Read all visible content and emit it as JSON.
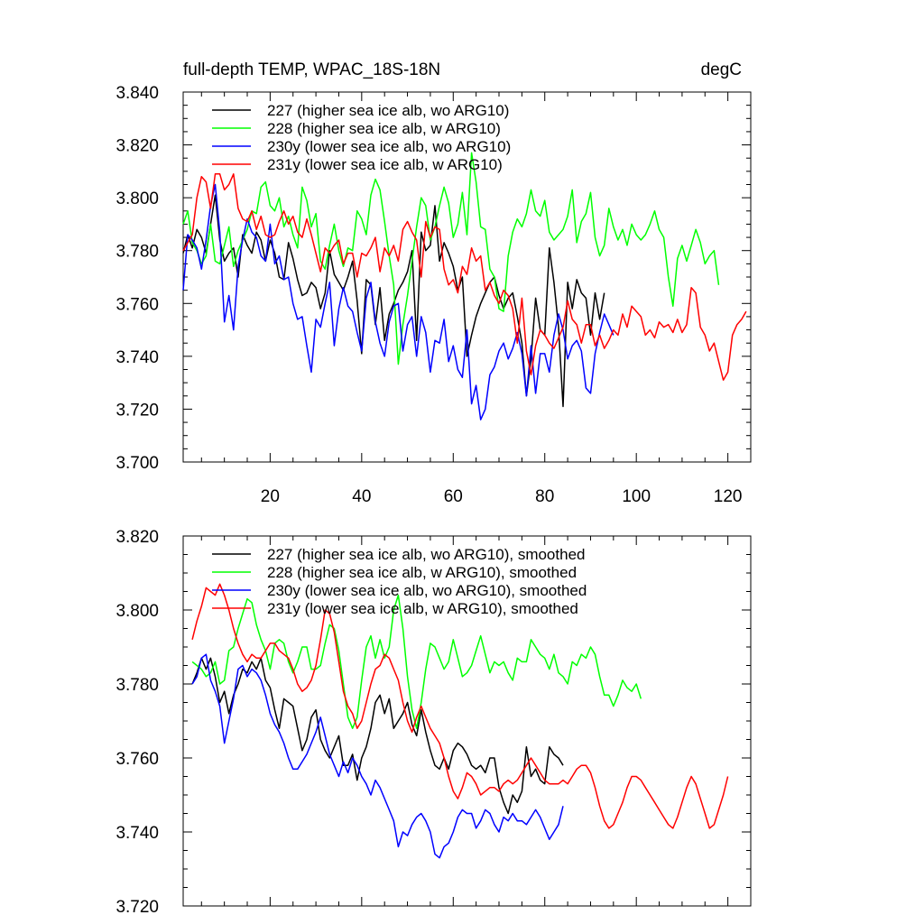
{
  "chart_data": [
    {
      "type": "line",
      "title": "full-depth TEMP, WPAC_18S-18N",
      "units": "degC",
      "xlim": [
        1,
        125
      ],
      "ylim": [
        3.7,
        3.84
      ],
      "x_ticks": [
        20,
        40,
        60,
        80,
        100,
        120
      ],
      "y_ticks": [
        3.7,
        3.72,
        3.74,
        3.76,
        3.78,
        3.8,
        3.82,
        3.84
      ],
      "x_tick_labels": [
        "20",
        "40",
        "60",
        "80",
        "100",
        "120"
      ],
      "y_tick_labels": [
        "3.700",
        "3.720",
        "3.740",
        "3.760",
        "3.780",
        "3.800",
        "3.820",
        "3.840"
      ],
      "legend_position": "top-left",
      "series": [
        {
          "name": "227 (higher sea ice alb, wo ARG10)",
          "color": "#000000",
          "x_start": 1,
          "values": [
            3.779,
            3.786,
            3.781,
            3.788,
            3.785,
            3.779,
            3.79,
            3.801,
            3.784,
            3.776,
            3.779,
            3.781,
            3.77,
            3.786,
            3.782,
            3.779,
            3.787,
            3.784,
            3.776,
            3.784,
            3.779,
            3.77,
            3.769,
            3.783,
            3.777,
            3.769,
            3.763,
            3.764,
            3.768,
            3.766,
            3.758,
            3.764,
            3.78,
            3.771,
            3.768,
            3.765,
            3.77,
            3.776,
            3.761,
            3.741,
            3.769,
            3.767,
            3.752,
            3.766,
            3.746,
            3.756,
            3.76,
            3.765,
            3.768,
            3.772,
            3.78,
            3.746,
            3.787,
            3.78,
            3.782,
            3.797,
            3.776,
            3.783,
            3.779,
            3.774,
            3.765,
            3.77,
            3.74,
            3.748,
            3.755,
            3.76,
            3.764,
            3.768,
            3.77,
            3.763,
            3.758,
            3.762,
            3.764,
            3.755,
            3.745,
            3.725,
            3.739,
            3.762,
            3.75,
            3.748,
            3.781,
            3.768,
            3.751,
            3.721,
            3.768,
            3.758,
            3.769,
            3.764,
            3.762,
            3.748,
            3.764,
            3.754,
            3.764
          ]
        },
        {
          "name": "228 (higher sea ice alb, w ARG10)",
          "color": "#00ff00",
          "x_start": 1,
          "values": [
            3.79,
            3.795,
            3.783,
            3.78,
            3.775,
            3.778,
            3.79,
            3.776,
            3.775,
            3.782,
            3.789,
            3.774,
            3.78,
            3.784,
            3.788,
            3.795,
            3.794,
            3.804,
            3.806,
            3.797,
            3.795,
            3.8,
            3.789,
            3.793,
            3.786,
            3.781,
            3.804,
            3.799,
            3.789,
            3.794,
            3.776,
            3.773,
            3.782,
            3.79,
            3.78,
            3.774,
            3.781,
            3.78,
            3.795,
            3.792,
            3.786,
            3.801,
            3.807,
            3.803,
            3.791,
            3.778,
            3.767,
            3.737,
            3.752,
            3.763,
            3.776,
            3.789,
            3.8,
            3.797,
            3.784,
            3.789,
            3.797,
            3.804,
            3.798,
            3.785,
            3.79,
            3.802,
            3.786,
            3.817,
            3.806,
            3.789,
            3.788,
            3.773,
            3.77,
            3.758,
            3.757,
            3.778,
            3.787,
            3.792,
            3.789,
            3.794,
            3.803,
            3.795,
            3.793,
            3.799,
            3.787,
            3.784,
            3.786,
            3.788,
            3.793,
            3.803,
            3.783,
            3.791,
            3.794,
            3.802,
            3.785,
            3.778,
            3.782,
            3.796,
            3.789,
            3.784,
            3.788,
            3.782,
            3.79,
            3.786,
            3.784,
            3.786,
            3.79,
            3.795,
            3.788,
            3.785,
            3.77,
            3.759,
            3.777,
            3.782,
            3.776,
            3.782,
            3.788,
            3.783,
            3.775,
            3.778,
            3.78,
            3.767
          ]
        },
        {
          "name": "230y (lower sea ice alb, wo ARG10)",
          "color": "#0000ff",
          "x_start": 1,
          "values": [
            3.765,
            3.786,
            3.784,
            3.781,
            3.773,
            3.784,
            3.797,
            3.805,
            3.787,
            3.753,
            3.763,
            3.75,
            3.774,
            3.784,
            3.792,
            3.787,
            3.785,
            3.778,
            3.776,
            3.79,
            3.775,
            3.778,
            3.769,
            3.77,
            3.76,
            3.754,
            3.755,
            3.744,
            3.734,
            3.754,
            3.751,
            3.76,
            3.768,
            3.744,
            3.758,
            3.766,
            3.759,
            3.757,
            3.749,
            3.742,
            3.762,
            3.768,
            3.753,
            3.745,
            3.74,
            3.753,
            3.759,
            3.76,
            3.742,
            3.752,
            3.755,
            3.74,
            3.755,
            3.749,
            3.734,
            3.746,
            3.745,
            3.754,
            3.738,
            3.744,
            3.735,
            3.732,
            3.75,
            3.722,
            3.729,
            3.716,
            3.72,
            3.733,
            3.736,
            3.742,
            3.745,
            3.739,
            3.743,
            3.749,
            3.741,
            3.725,
            3.744,
            3.726,
            3.741,
            3.741,
            3.734,
            3.748,
            3.756,
            3.75,
            3.739,
            3.744,
            3.746,
            3.742,
            3.728,
            3.726,
            3.741,
            3.749,
            3.756,
            3.752,
            3.748
          ]
        },
        {
          "name": "231y (lower sea ice alb, w ARG10)",
          "color": "#ff0000",
          "x_start": 1,
          "values": [
            3.78,
            3.783,
            3.786,
            3.8,
            3.808,
            3.806,
            3.796,
            3.809,
            3.809,
            3.803,
            3.805,
            3.809,
            3.796,
            3.792,
            3.791,
            3.795,
            3.788,
            3.793,
            3.786,
            3.785,
            3.786,
            3.791,
            3.795,
            3.79,
            3.793,
            3.787,
            3.785,
            3.792,
            3.786,
            3.779,
            3.772,
            3.781,
            3.779,
            3.782,
            3.784,
            3.775,
            3.779,
            3.779,
            3.77,
            3.779,
            3.778,
            3.781,
            3.785,
            3.772,
            3.781,
            3.778,
            3.782,
            3.776,
            3.788,
            3.791,
            3.787,
            3.784,
            3.77,
            3.791,
            3.785,
            3.789,
            3.788,
            3.773,
            3.767,
            3.769,
            3.764,
            3.774,
            3.771,
            3.781,
            3.776,
            3.778,
            3.765,
            3.768,
            3.763,
            3.76,
            3.765,
            3.763,
            3.758,
            3.745,
            3.762,
            3.742,
            3.733,
            3.744,
            3.75,
            3.748,
            3.745,
            3.743,
            3.747,
            3.751,
            3.761,
            3.754,
            3.752,
            3.745,
            3.752,
            3.752,
            3.744,
            3.748,
            3.743,
            3.746,
            3.75,
            3.748,
            3.756,
            3.751,
            3.759,
            3.757,
            3.755,
            3.748,
            3.75,
            3.747,
            3.753,
            3.751,
            3.752,
            3.749,
            3.754,
            3.749,
            3.752,
            3.766,
            3.764,
            3.751,
            3.748,
            3.742,
            3.745,
            3.738,
            3.731,
            3.734,
            3.748,
            3.752,
            3.754,
            3.757
          ]
        }
      ]
    },
    {
      "type": "line",
      "title": "",
      "xlim": [
        1,
        125
      ],
      "ylim": [
        3.72,
        3.82
      ],
      "x_ticks": [
        20,
        40,
        60,
        80,
        100,
        120
      ],
      "y_ticks": [
        3.72,
        3.74,
        3.76,
        3.78,
        3.8,
        3.82
      ],
      "y_tick_labels": [
        "3.720",
        "3.740",
        "3.760",
        "3.780",
        "3.800",
        "3.820"
      ],
      "legend_position": "top-left",
      "series": [
        {
          "name": "227 (higher sea ice alb, wo ARG10), smoothed",
          "color": "#000000",
          "x_start": 3,
          "values": [
            3.78,
            3.783,
            3.787,
            3.784,
            3.787,
            3.782,
            3.775,
            3.778,
            3.772,
            3.777,
            3.78,
            3.784,
            3.783,
            3.786,
            3.784,
            3.787,
            3.781,
            3.779,
            3.773,
            3.768,
            3.776,
            3.775,
            3.774,
            3.768,
            3.762,
            3.765,
            3.771,
            3.773,
            3.765,
            3.762,
            3.76,
            3.763,
            3.766,
            3.758,
            3.758,
            3.761,
            3.754,
            3.76,
            3.763,
            3.768,
            3.775,
            3.777,
            3.772,
            3.776,
            3.768,
            3.77,
            3.772,
            3.775,
            3.769,
            3.766,
            3.773,
            3.767,
            3.762,
            3.758,
            3.757,
            3.76,
            3.757,
            3.762,
            3.764,
            3.763,
            3.761,
            3.758,
            3.757,
            3.758,
            3.756,
            3.76,
            3.76,
            3.752,
            3.748,
            3.745,
            3.75,
            3.748,
            3.751,
            3.763,
            3.755,
            3.757,
            3.754,
            3.753,
            3.763,
            3.761,
            3.76,
            3.758
          ]
        },
        {
          "name": "228 (higher sea ice alb, w ARG10), smoothed",
          "color": "#00ff00",
          "x_start": 3,
          "values": [
            3.786,
            3.785,
            3.784,
            3.782,
            3.783,
            3.786,
            3.78,
            3.781,
            3.789,
            3.79,
            3.795,
            3.799,
            3.803,
            3.802,
            3.796,
            3.792,
            3.789,
            3.784,
            3.791,
            3.792,
            3.791,
            3.786,
            3.783,
            3.786,
            3.79,
            3.79,
            3.784,
            3.784,
            3.785,
            3.791,
            3.796,
            3.795,
            3.789,
            3.78,
            3.771,
            3.768,
            3.771,
            3.781,
            3.79,
            3.793,
            3.787,
            3.792,
            3.787,
            3.79,
            3.8,
            3.804,
            3.795,
            3.782,
            3.773,
            3.768,
            3.775,
            3.784,
            3.791,
            3.79,
            3.787,
            3.784,
            3.786,
            3.792,
            3.787,
            3.782,
            3.783,
            3.785,
            3.789,
            3.793,
            3.788,
            3.783,
            3.786,
            3.785,
            3.786,
            3.783,
            3.781,
            3.787,
            3.786,
            3.786,
            3.792,
            3.79,
            3.788,
            3.787,
            3.784,
            3.788,
            3.783,
            3.782,
            3.78,
            3.786,
            3.785,
            3.788,
            3.787,
            3.79,
            3.788,
            3.782,
            3.777,
            3.777,
            3.774,
            3.777,
            3.781,
            3.779,
            3.778,
            3.78,
            3.776
          ]
        },
        {
          "name": "230y (lower sea ice alb, wo ARG10), smoothed",
          "color": "#0000ff",
          "x_start": 3,
          "values": [
            3.78,
            3.782,
            3.787,
            3.788,
            3.781,
            3.778,
            3.774,
            3.764,
            3.77,
            3.776,
            3.784,
            3.785,
            3.782,
            3.784,
            3.783,
            3.781,
            3.777,
            3.772,
            3.769,
            3.767,
            3.764,
            3.76,
            3.757,
            3.757,
            3.759,
            3.761,
            3.764,
            3.767,
            3.771,
            3.766,
            3.761,
            3.758,
            3.755,
            3.759,
            3.756,
            3.76,
            3.758,
            3.755,
            3.753,
            3.75,
            3.754,
            3.752,
            3.749,
            3.746,
            3.743,
            3.736,
            3.74,
            3.739,
            3.742,
            3.744,
            3.745,
            3.743,
            3.74,
            3.734,
            3.733,
            3.736,
            3.737,
            3.74,
            3.744,
            3.746,
            3.745,
            3.745,
            3.741,
            3.743,
            3.746,
            3.745,
            3.742,
            3.74,
            3.744,
            3.743,
            3.745,
            3.743,
            3.743,
            3.742,
            3.744,
            3.746,
            3.744,
            3.741,
            3.738,
            3.74,
            3.742,
            3.747
          ]
        },
        {
          "name": "231y (lower sea ice alb, w ARG10), smoothed",
          "color": "#ff0000",
          "x_start": 3,
          "values": [
            3.792,
            3.797,
            3.801,
            3.806,
            3.805,
            3.804,
            3.807,
            3.804,
            3.8,
            3.795,
            3.791,
            3.788,
            3.786,
            3.788,
            3.787,
            3.787,
            3.789,
            3.791,
            3.791,
            3.789,
            3.788,
            3.787,
            3.784,
            3.78,
            3.778,
            3.779,
            3.781,
            3.785,
            3.792,
            3.8,
            3.799,
            3.794,
            3.786,
            3.778,
            3.774,
            3.772,
            3.768,
            3.77,
            3.775,
            3.78,
            3.784,
            3.785,
            3.788,
            3.787,
            3.784,
            3.781,
            3.775,
            3.77,
            3.767,
            3.771,
            3.774,
            3.771,
            3.768,
            3.766,
            3.764,
            3.76,
            3.755,
            3.751,
            3.749,
            3.752,
            3.756,
            3.755,
            3.753,
            3.75,
            3.751,
            3.752,
            3.752,
            3.751,
            3.753,
            3.754,
            3.753,
            3.754,
            3.756,
            3.758,
            3.76,
            3.758,
            3.756,
            3.754,
            3.753,
            3.753,
            3.753,
            3.754,
            3.753,
            3.755,
            3.757,
            3.758,
            3.758,
            3.756,
            3.752,
            3.747,
            3.743,
            3.741,
            3.742,
            3.745,
            3.748,
            3.752,
            3.755,
            3.755,
            3.754,
            3.752,
            3.75,
            3.748,
            3.746,
            3.744,
            3.742,
            3.741,
            3.744,
            3.748,
            3.752,
            3.755,
            3.753,
            3.749,
            3.745,
            3.741,
            3.742,
            3.746,
            3.75,
            3.755
          ]
        }
      ]
    }
  ]
}
